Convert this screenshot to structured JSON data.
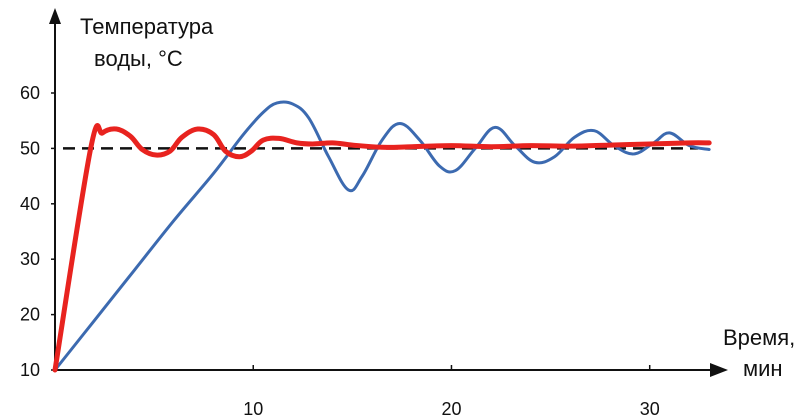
{
  "chart_data": {
    "type": "line",
    "ylabel": [
      "Температура",
      "воды, °C"
    ],
    "xlabel": [
      "Время,",
      "мин"
    ],
    "y_ticks": [
      10,
      20,
      30,
      40,
      50,
      60
    ],
    "x_ticks": [
      10,
      20,
      30
    ],
    "xlim": [
      0,
      34
    ],
    "ylim": [
      10,
      64
    ],
    "reference_line": {
      "y": 50,
      "style": "dashed",
      "color": "#111111"
    },
    "series": [
      {
        "color": "#e8231f",
        "points": [
          [
            0,
            10
          ],
          [
            1.8,
            50
          ],
          [
            2.4,
            52.8
          ],
          [
            3.1,
            53.5
          ],
          [
            3.8,
            52.2
          ],
          [
            4.4,
            49.8
          ],
          [
            5.1,
            48.8
          ],
          [
            5.8,
            49.5
          ],
          [
            6.4,
            52.0
          ],
          [
            7.2,
            53.5
          ],
          [
            8.0,
            52.5
          ],
          [
            8.6,
            49.5
          ],
          [
            9.3,
            48.5
          ],
          [
            9.9,
            49.5
          ],
          [
            10.5,
            51.5
          ],
          [
            11.3,
            51.8
          ],
          [
            12.2,
            51.0
          ],
          [
            13.0,
            50.8
          ],
          [
            14.0,
            51.0
          ],
          [
            15.0,
            50.6
          ],
          [
            16.5,
            50.2
          ],
          [
            18.0,
            50.3
          ],
          [
            20.0,
            50.5
          ],
          [
            22.0,
            50.3
          ],
          [
            24.0,
            50.5
          ],
          [
            26.0,
            50.4
          ],
          [
            28.0,
            50.6
          ],
          [
            30.0,
            50.8
          ],
          [
            32.0,
            51.0
          ],
          [
            33.0,
            51.0
          ]
        ]
      },
      {
        "color": "#3c6ab0",
        "points": [
          [
            0,
            10
          ],
          [
            2.0,
            19
          ],
          [
            4.0,
            28
          ],
          [
            6.0,
            37
          ],
          [
            8.0,
            45.5
          ],
          [
            9.5,
            52.5
          ],
          [
            10.5,
            56.5
          ],
          [
            11.2,
            58.2
          ],
          [
            12.0,
            58.0
          ],
          [
            12.8,
            55.5
          ],
          [
            13.8,
            48.5
          ],
          [
            14.8,
            42.5
          ],
          [
            15.5,
            45.0
          ],
          [
            16.5,
            51.5
          ],
          [
            17.4,
            54.5
          ],
          [
            18.4,
            51.5
          ],
          [
            19.4,
            46.8
          ],
          [
            20.2,
            46.0
          ],
          [
            21.2,
            50.0
          ],
          [
            22.2,
            53.8
          ],
          [
            23.2,
            50.5
          ],
          [
            24.2,
            47.5
          ],
          [
            25.2,
            48.5
          ],
          [
            26.2,
            52.0
          ],
          [
            27.2,
            53.2
          ],
          [
            28.2,
            50.5
          ],
          [
            29.2,
            49.0
          ],
          [
            30.2,
            51.0
          ],
          [
            31.0,
            52.8
          ],
          [
            32.0,
            50.5
          ],
          [
            33.0,
            49.8
          ]
        ]
      }
    ]
  }
}
